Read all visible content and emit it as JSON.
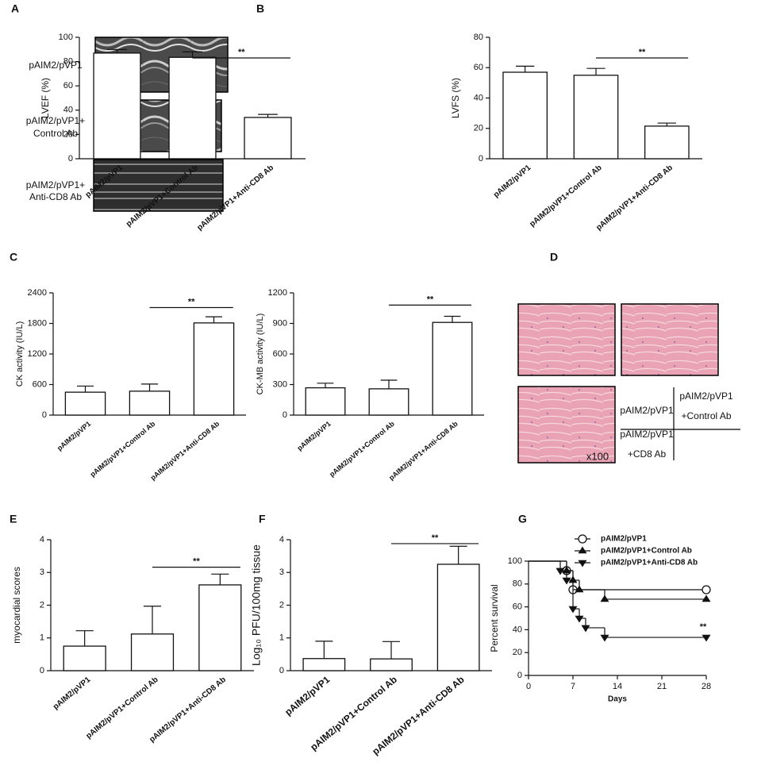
{
  "panels": {
    "letters": [
      "A",
      "B",
      "C",
      "D",
      "E",
      "F",
      "G"
    ],
    "A": {
      "labels": [
        [
          "pAIM2/pVP1"
        ],
        [
          "pAIM2/pVP1+",
          "Control Ab"
        ],
        [
          "pAIM2/pVP1+",
          "Anti-CD8 Ab"
        ]
      ]
    },
    "D": {
      "quadrant": [
        [
          "pAIM2/pVP1"
        ],
        [
          "pAIM2/pVP1",
          "+Control Ab"
        ],
        [
          "pAIM2/pVP1",
          "+CD8 Ab"
        ]
      ],
      "magnification": "x100"
    }
  },
  "chart_data": [
    {
      "type": "bar",
      "ylabel": "LVEF (%)",
      "categories": [
        "pAIM2/pVP1",
        "pAIM2/pVP1+Control Ab",
        "pAIM2/pVP1+Anti-CD8 Ab"
      ],
      "values": [
        87,
        83.5,
        34
      ],
      "errors": [
        3,
        4.5,
        2.5
      ],
      "color": "#ffffff",
      "ylim": [
        0,
        100
      ],
      "yticks": [
        0,
        20,
        40,
        60,
        80,
        100
      ],
      "annotation": "**"
    },
    {
      "type": "bar",
      "ylabel": "LVFS (%)",
      "categories": [
        "pAIM2/pVP1",
        "pAIM2/pVP1+Control Ab",
        "pAIM2/pVP1+Anti-CD8 Ab"
      ],
      "values": [
        57,
        55,
        21.5
      ],
      "errors": [
        4,
        4.5,
        2
      ],
      "color": "#ffffff",
      "ylim": [
        0,
        80
      ],
      "yticks": [
        0,
        20,
        40,
        60,
        80
      ],
      "annotation": "**"
    },
    {
      "type": "bar",
      "ylabel": "CK activity (IU/L)",
      "categories": [
        "pAIM2/pVP1",
        "pAIM2/pVP1+Control Ab",
        "pAIM2/pVP1+Anti-CD8 Ab"
      ],
      "values": [
        450,
        470,
        1810
      ],
      "errors": [
        120,
        140,
        120
      ],
      "color": "#ffffff",
      "ylim": [
        0,
        2400
      ],
      "yticks": [
        0,
        600,
        1200,
        1800,
        2400
      ],
      "annotation": "**"
    },
    {
      "type": "bar",
      "ylabel": "CK-MB activity (IU/L)",
      "categories": [
        "pAIM2/pVP1",
        "pAIM2/pVP1+Control Ab",
        "pAIM2/pVP1+Anti-CD8 Ab"
      ],
      "values": [
        268,
        258,
        910
      ],
      "errors": [
        45,
        85,
        60
      ],
      "color": "#ffffff",
      "ylim": [
        0,
        1200
      ],
      "yticks": [
        0,
        300,
        600,
        900,
        1200
      ],
      "annotation": "**"
    },
    {
      "type": "bar",
      "ylabel": "myocardial scores",
      "categories": [
        "pAIM2/pVP1",
        "pAIM2/pVP1+Control Ab",
        "pAIM2/pVP1+Anti-CD8 Ab"
      ],
      "values": [
        0.75,
        1.12,
        2.62
      ],
      "errors": [
        0.47,
        0.85,
        0.33
      ],
      "color": "#ffffff",
      "ylim": [
        0,
        4
      ],
      "yticks": [
        0,
        1,
        2,
        3,
        4
      ],
      "annotation": "**"
    },
    {
      "type": "bar",
      "ylabel": "Log₁₀ PFU/100mg tissue",
      "categories": [
        "pAIM2/pVP1",
        "pAIM2/pVP1+Control Ab",
        "pAIM2/pVP1+Anti-CD8 Ab"
      ],
      "values": [
        0.37,
        0.36,
        3.25
      ],
      "errors": [
        0.53,
        0.53,
        0.55
      ],
      "color": "#ffffff",
      "ylim": [
        0,
        4
      ],
      "yticks": [
        0,
        1,
        2,
        3,
        4
      ],
      "annotation": "**"
    },
    {
      "type": "line",
      "xlabel": "Days",
      "ylabel": "Percent survival",
      "xlim": [
        0,
        28
      ],
      "xticks": [
        0,
        7,
        14,
        21,
        28
      ],
      "ylim": [
        0,
        100
      ],
      "yticks": [
        0,
        20,
        40,
        60,
        80,
        100
      ],
      "annotation": "**",
      "series": [
        {
          "name": "pAIM2/pVP1",
          "color": "#111111",
          "marker": "circle",
          "x": [
            0,
            6,
            7,
            28
          ],
          "values": [
            100,
            91.7,
            75,
            75
          ]
        },
        {
          "name": "pAIM2/pVP1+Control Ab",
          "color": "#111111",
          "marker": "triangle-up",
          "x": [
            0,
            6,
            7,
            8,
            12,
            28
          ],
          "values": [
            100,
            91.7,
            83.3,
            75,
            66.7,
            66.7
          ]
        },
        {
          "name": "pAIM2/pVP1+Anti-CD8 Ab",
          "color": "#111111",
          "marker": "triangle-down",
          "x": [
            0,
            5,
            6,
            7,
            8,
            9,
            12,
            28
          ],
          "values": [
            100,
            91.7,
            83.3,
            58.3,
            50,
            41.7,
            33.3,
            33.3
          ]
        }
      ]
    }
  ]
}
